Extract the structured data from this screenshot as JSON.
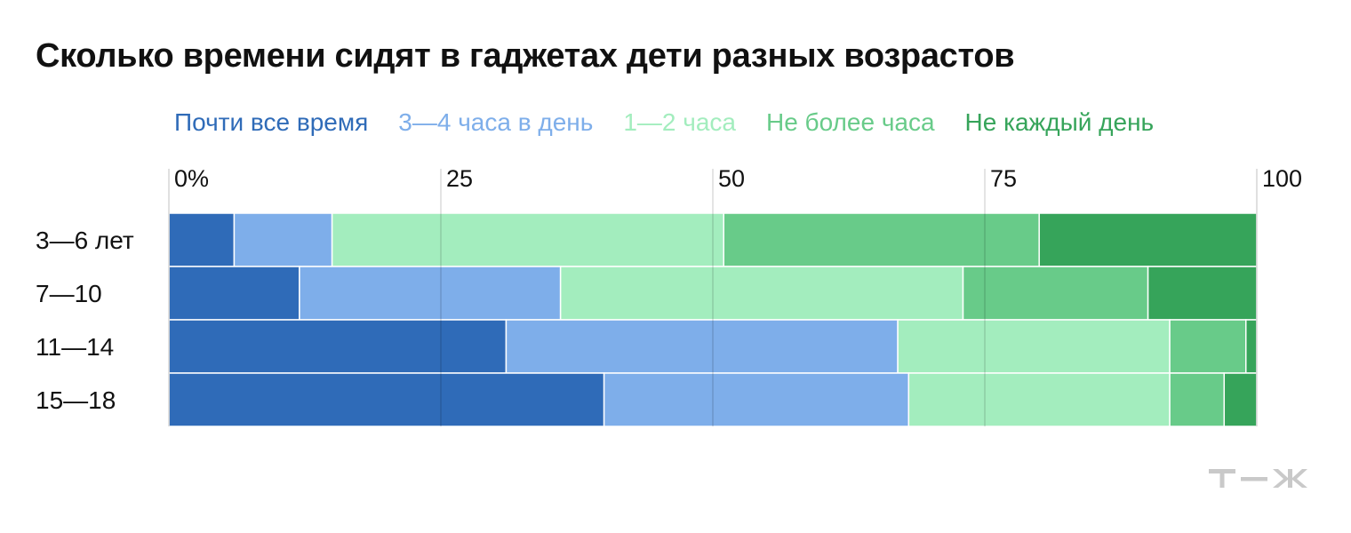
{
  "title": "Сколько времени сидят в гаджетах дети разных возрастов",
  "chart_data": {
    "type": "bar",
    "orientation": "horizontal",
    "stacked": true,
    "title": "Сколько времени сидят в гаджетах дети разных возрастов",
    "categories": [
      "3—6 лет",
      "7—10",
      "11—14",
      "15—18"
    ],
    "xlim": [
      0,
      100
    ],
    "ticks": [
      {
        "value": 0,
        "label": "0%"
      },
      {
        "value": 25,
        "label": "25"
      },
      {
        "value": 50,
        "label": "50"
      },
      {
        "value": 75,
        "label": "75"
      },
      {
        "value": 100,
        "label": "100"
      }
    ],
    "grid": true,
    "legend_position": "top",
    "series": [
      {
        "name": "Почти все время",
        "color": "#2f6bb8",
        "values": [
          6,
          12,
          31,
          40
        ]
      },
      {
        "name": "3—4 часа в день",
        "color": "#7eaeea",
        "values": [
          9,
          24,
          36,
          28
        ]
      },
      {
        "name": "1—2 часа",
        "color": "#a3edbe",
        "values": [
          36,
          37,
          25,
          24
        ]
      },
      {
        "name": "Не более часа",
        "color": "#68cb89",
        "values": [
          29,
          17,
          7,
          5
        ]
      },
      {
        "name": "Не каждый день",
        "color": "#36a45a",
        "values": [
          20,
          10,
          1,
          3
        ]
      }
    ]
  },
  "brand": {
    "logo_icon": "tzh-logo-icon",
    "text_color": "#c9c9c9"
  }
}
